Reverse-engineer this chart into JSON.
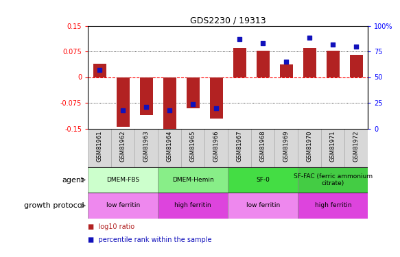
{
  "title": "GDS2230 / 19313",
  "samples": [
    "GSM81961",
    "GSM81962",
    "GSM81963",
    "GSM81964",
    "GSM81965",
    "GSM81966",
    "GSM81967",
    "GSM81968",
    "GSM81969",
    "GSM81970",
    "GSM81971",
    "GSM81972"
  ],
  "log10_ratio": [
    0.04,
    -0.145,
    -0.11,
    -0.15,
    -0.09,
    -0.12,
    0.085,
    0.078,
    0.038,
    0.085,
    0.078,
    0.065
  ],
  "percentile_rank": [
    57,
    18,
    21,
    18,
    24,
    20,
    87,
    83,
    65,
    88,
    82,
    80
  ],
  "ylim": [
    -0.15,
    0.15
  ],
  "yticks_left": [
    -0.15,
    -0.075,
    0,
    0.075,
    0.15
  ],
  "yticks_right": [
    0,
    25,
    50,
    75,
    100
  ],
  "bar_color": "#B22222",
  "dot_color": "#1111BB",
  "agent_groups": [
    {
      "label": "DMEM-FBS",
      "start": 0,
      "end": 3,
      "color": "#ccffcc"
    },
    {
      "label": "DMEM-Hemin",
      "start": 3,
      "end": 6,
      "color": "#88ee88"
    },
    {
      "label": "SF-0",
      "start": 6,
      "end": 9,
      "color": "#44dd44"
    },
    {
      "label": "SF-FAC (ferric ammonium\ncitrate)",
      "start": 9,
      "end": 12,
      "color": "#44cc44"
    }
  ],
  "protocol_groups": [
    {
      "label": "low ferritin",
      "start": 0,
      "end": 3,
      "color": "#ee88ee"
    },
    {
      "label": "high ferritin",
      "start": 3,
      "end": 6,
      "color": "#dd44dd"
    },
    {
      "label": "low ferritin",
      "start": 6,
      "end": 9,
      "color": "#ee88ee"
    },
    {
      "label": "high ferritin",
      "start": 9,
      "end": 12,
      "color": "#dd44dd"
    }
  ]
}
